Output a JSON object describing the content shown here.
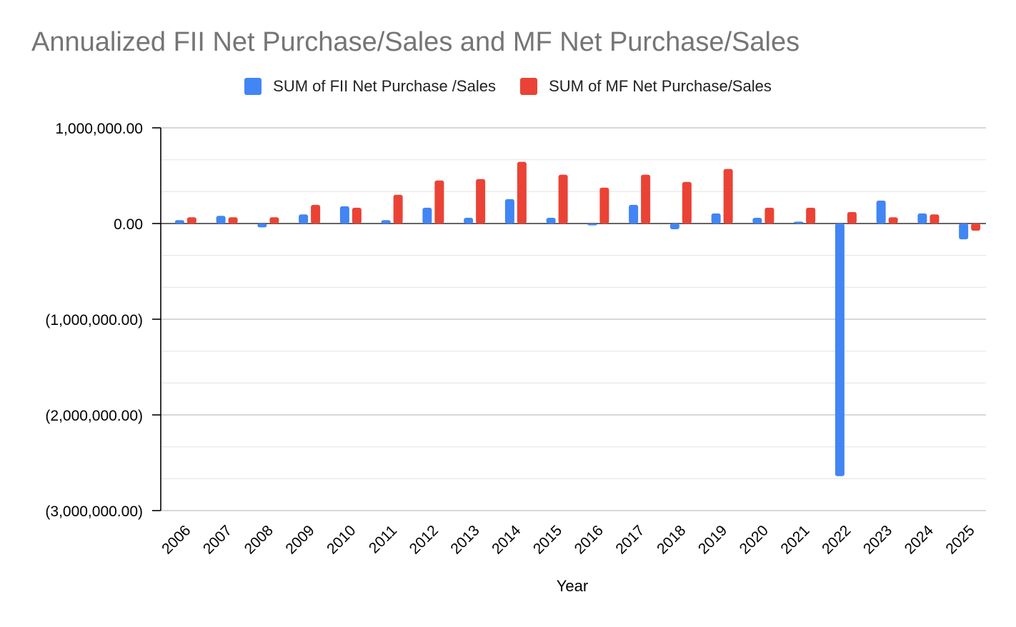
{
  "colors": {
    "fii": "#4285f4",
    "mf": "#ea4335",
    "title": "#757575",
    "grid": "#cccccc",
    "gridMinor": "#e6e6e6"
  },
  "chart_data": {
    "type": "bar",
    "title": "Annualized FII Net Purchase/Sales and MF Net Purchase/Sales",
    "xlabel": "Year",
    "ylabel": "",
    "ylim": [
      -3000000,
      1000000
    ],
    "yticks": [
      1000000,
      0,
      -1000000,
      -2000000,
      -3000000
    ],
    "ytick_labels": [
      "1,000,000.00",
      "0.00",
      "(1,000,000.00)",
      "(2,000,000.00)",
      "(3,000,000.00)"
    ],
    "grid": true,
    "legend_position": "top-center",
    "categories": [
      "2006",
      "2007",
      "2008",
      "2009",
      "2010",
      "2011",
      "2012",
      "2013",
      "2014",
      "2015",
      "2016",
      "2017",
      "2018",
      "2019",
      "2020",
      "2021",
      "2022",
      "2023",
      "2024",
      "2025"
    ],
    "series": [
      {
        "name": "SUM of FII Net Purchase /Sales",
        "values": [
          35000,
          80000,
          -40000,
          95000,
          180000,
          35000,
          165000,
          60000,
          255000,
          60000,
          -20000,
          195000,
          -60000,
          105000,
          60000,
          20000,
          -2640000,
          240000,
          105000,
          -165000
        ]
      },
      {
        "name": "SUM of MF Net Purchase/Sales",
        "values": [
          65000,
          65000,
          65000,
          195000,
          165000,
          300000,
          450000,
          465000,
          645000,
          510000,
          375000,
          510000,
          435000,
          570000,
          165000,
          165000,
          120000,
          65000,
          95000,
          -75000
        ]
      }
    ]
  }
}
